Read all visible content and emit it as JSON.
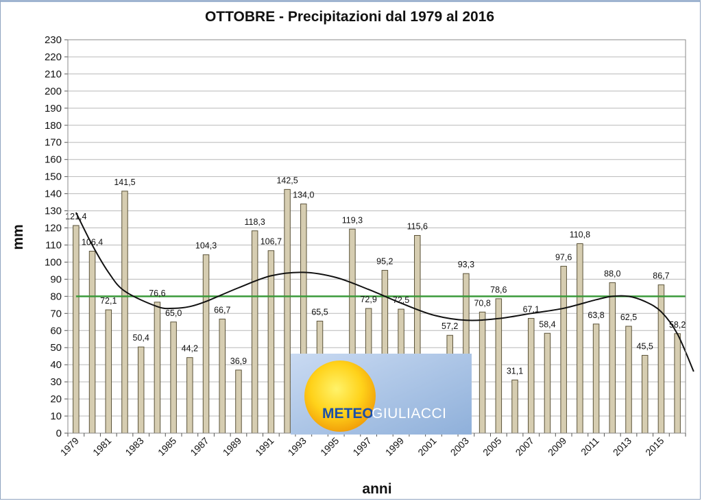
{
  "chart_data": {
    "type": "bar",
    "title": "OTTOBRE - Precipitazioni dal 1979 al 2016",
    "xlabel": "anni",
    "ylabel": "mm",
    "ylim": [
      0,
      230
    ],
    "ytick_step": 10,
    "grid": "horizontal",
    "categories": [
      "1979",
      "1980",
      "1981",
      "1982",
      "1983",
      "1984",
      "1985",
      "1986",
      "1987",
      "1988",
      "1989",
      "1990",
      "1991",
      "1992",
      "1993",
      "1994",
      "1995",
      "1996",
      "1997",
      "1998",
      "1999",
      "2000",
      "2001",
      "2002",
      "2003",
      "2004",
      "2005",
      "2006",
      "2007",
      "2008",
      "2009",
      "2010",
      "2011",
      "2012",
      "2013",
      "2014",
      "2015",
      "2016"
    ],
    "x_tick_labels": [
      "1979",
      "1981",
      "1983",
      "1985",
      "1987",
      "1989",
      "1991",
      "1993",
      "1995",
      "1997",
      "1999",
      "2001",
      "2003",
      "2005",
      "2007",
      "2009",
      "2011",
      "2013",
      "2015"
    ],
    "values": [
      121.4,
      106.4,
      72.1,
      141.5,
      50.4,
      76.6,
      65.0,
      44.2,
      104.3,
      66.7,
      36.9,
      118.3,
      106.7,
      142.5,
      134.0,
      65.5,
      null,
      119.3,
      72.9,
      95.2,
      72.5,
      115.6,
      null,
      57.2,
      93.3,
      70.8,
      78.6,
      31.1,
      67.1,
      58.4,
      97.6,
      110.8,
      63.8,
      88.0,
      62.5,
      45.5,
      86.7,
      58.2
    ],
    "data_labels": [
      "121,4",
      "106,4",
      "72,1",
      "141,5",
      "50,4",
      "76,6",
      "65,0",
      "44,2",
      "104,3",
      "66,7",
      "36,9",
      "118,3",
      "106,7",
      "142,5",
      "134,0",
      "65,5",
      "",
      "119,3",
      "72,9",
      "95,2",
      "72,5",
      "115,6",
      "",
      "57,2",
      "93,3",
      "70,8",
      "78,6",
      "31,1",
      "67,1",
      "58,4",
      "97,6",
      "110,8",
      "63,8",
      "88,0",
      "62,5",
      "45,5",
      "86,7",
      "58,2"
    ],
    "reference_line": {
      "value": 80,
      "color": "#3a9a3a"
    },
    "trend_line": {
      "x": [
        "1979",
        "1980",
        "1981",
        "1982",
        "1984",
        "1985",
        "1986",
        "1987",
        "1989",
        "1991",
        "1993",
        "1995",
        "1997",
        "1999",
        "2001",
        "2003",
        "2005",
        "2007",
        "2009",
        "2011",
        "2012",
        "2013",
        "2014",
        "2015",
        "2016",
        "2017"
      ],
      "values": [
        129,
        110,
        94,
        83,
        74,
        73,
        74,
        77,
        85,
        92,
        94,
        91,
        84,
        76,
        69,
        66,
        67,
        70,
        73,
        78,
        80,
        80,
        77,
        71,
        58,
        36
      ],
      "color": "#111111"
    },
    "colors": {
      "bar_fill": "#d6cdb1",
      "bar_stroke": "#5a5238",
      "grid": "#b8b8b8"
    }
  },
  "logo": {
    "part1": "METEO",
    "part2": "GIULIACCI"
  }
}
